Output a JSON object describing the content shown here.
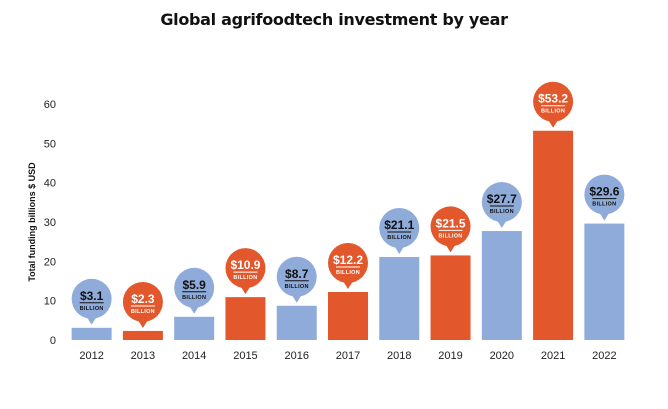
{
  "chart_data": {
    "type": "bar",
    "title": "Global agrifoodtech investment by year",
    "ylabel": "Total funding billions $ USD",
    "xlabel": "",
    "ylim": [
      0,
      60
    ],
    "yticks": [
      0,
      10,
      20,
      30,
      40,
      50,
      60
    ],
    "grid": false,
    "categories": [
      "2012",
      "2013",
      "2014",
      "2015",
      "2016",
      "2017",
      "2018",
      "2019",
      "2020",
      "2021",
      "2022"
    ],
    "values": [
      3.1,
      2.3,
      5.9,
      10.9,
      8.7,
      12.2,
      21.1,
      21.5,
      27.7,
      53.2,
      29.6
    ],
    "data_labels": [
      "$3.1",
      "$2.3",
      "$5.9",
      "$10.9",
      "$8.7",
      "$12.2",
      "$21.1",
      "$21.5",
      "$27.7",
      "$53.2",
      "$29.6"
    ],
    "label_unit": "BILLION",
    "bar_colors": [
      "#8eabd9",
      "#e2572b",
      "#8eabd9",
      "#e2572b",
      "#8eabd9",
      "#e2572b",
      "#8eabd9",
      "#e2572b",
      "#8eabd9",
      "#e2572b",
      "#8eabd9"
    ],
    "label_text_light": [
      false,
      true,
      false,
      true,
      false,
      true,
      false,
      true,
      false,
      true,
      false
    ]
  }
}
